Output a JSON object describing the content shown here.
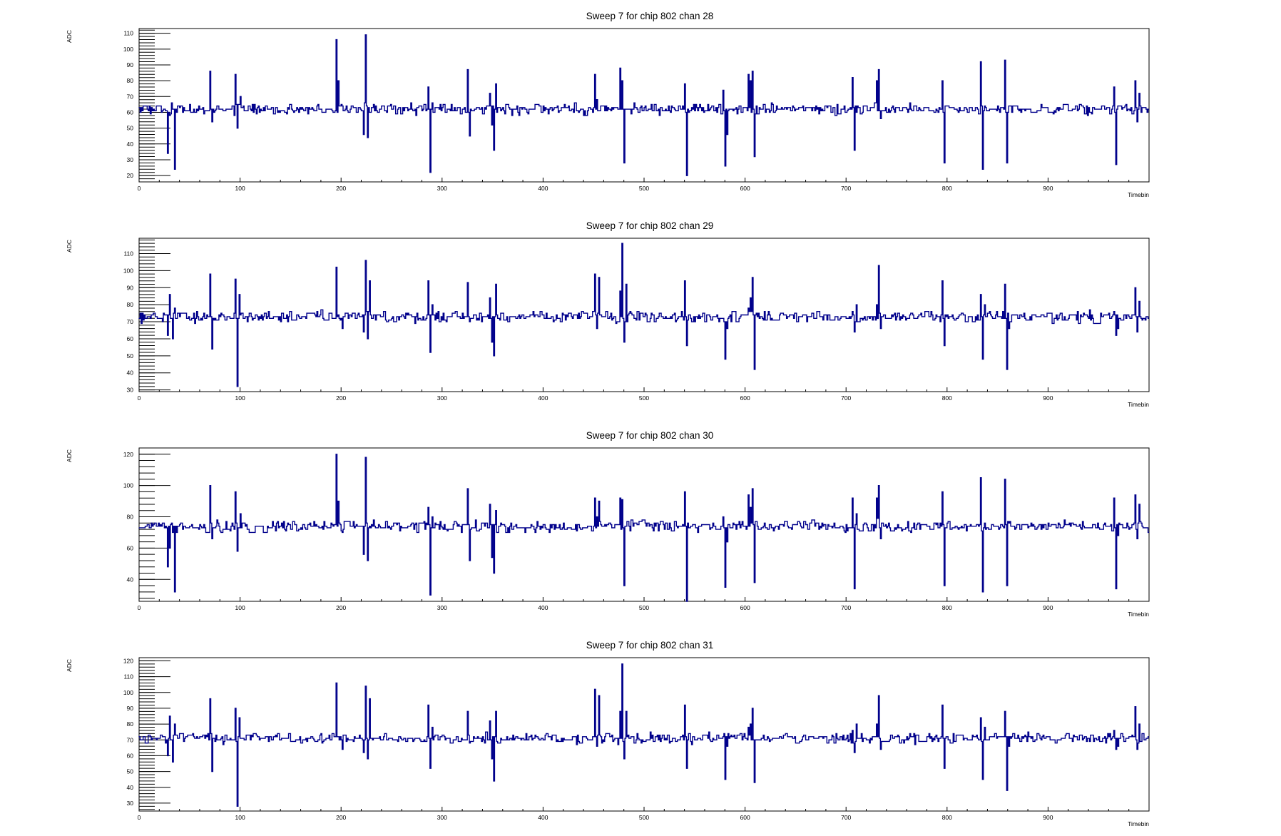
{
  "chart_data": [
    {
      "type": "line",
      "title": "Sweep 7 for chip 802 chan 28",
      "xlabel": "Timebin",
      "ylabel": "ADC",
      "xlim": [
        0,
        1000
      ],
      "ylim": [
        16,
        113
      ],
      "x_ticks": [
        0,
        100,
        200,
        300,
        400,
        500,
        600,
        700,
        800,
        900
      ],
      "y_ticks": [
        20,
        30,
        40,
        50,
        60,
        70,
        80,
        90,
        100,
        110
      ],
      "y_minor_step": 2,
      "grid": false,
      "baseline": 62,
      "noise": 2.2,
      "seed": 28,
      "spikes": [
        [
          28,
          34
        ],
        [
          30,
          58
        ],
        [
          32,
          66
        ],
        [
          35,
          24
        ],
        [
          37,
          60
        ],
        [
          70,
          86
        ],
        [
          72,
          54
        ],
        [
          95,
          84
        ],
        [
          97,
          50
        ],
        [
          100,
          70
        ],
        [
          195,
          106
        ],
        [
          197,
          80
        ],
        [
          201,
          64
        ],
        [
          222,
          46
        ],
        [
          224,
          109
        ],
        [
          226,
          44
        ],
        [
          228,
          60
        ],
        [
          286,
          76
        ],
        [
          288,
          22
        ],
        [
          290,
          66
        ],
        [
          325,
          87
        ],
        [
          327,
          45
        ],
        [
          347,
          72
        ],
        [
          349,
          52
        ],
        [
          351,
          36
        ],
        [
          353,
          78
        ],
        [
          440,
          58
        ],
        [
          451,
          84
        ],
        [
          453,
          68
        ],
        [
          476,
          88
        ],
        [
          478,
          80
        ],
        [
          480,
          28
        ],
        [
          540,
          78
        ],
        [
          542,
          20
        ],
        [
          578,
          74
        ],
        [
          580,
          26
        ],
        [
          582,
          46
        ],
        [
          603,
          84
        ],
        [
          605,
          80
        ],
        [
          607,
          86
        ],
        [
          609,
          32
        ],
        [
          706,
          82
        ],
        [
          708,
          36
        ],
        [
          710,
          60
        ],
        [
          730,
          80
        ],
        [
          732,
          87
        ],
        [
          734,
          56
        ],
        [
          795,
          80
        ],
        [
          797,
          28
        ],
        [
          833,
          92
        ],
        [
          835,
          24
        ],
        [
          837,
          64
        ],
        [
          857,
          93
        ],
        [
          859,
          28
        ],
        [
          965,
          76
        ],
        [
          967,
          27
        ],
        [
          969,
          64
        ],
        [
          986,
          80
        ],
        [
          988,
          54
        ],
        [
          990,
          72
        ]
      ]
    },
    {
      "type": "line",
      "title": "Sweep 7 for chip 802 chan 29",
      "xlabel": "Timebin",
      "ylabel": "ADC",
      "xlim": [
        0,
        1000
      ],
      "ylim": [
        29,
        119
      ],
      "x_ticks": [
        0,
        100,
        200,
        300,
        400,
        500,
        600,
        700,
        800,
        900
      ],
      "y_ticks": [
        30,
        40,
        50,
        60,
        70,
        80,
        90,
        100,
        110
      ],
      "y_minor_step": 2,
      "grid": false,
      "baseline": 73,
      "noise": 2.2,
      "seed": 29,
      "spikes": [
        [
          28,
          62
        ],
        [
          30,
          86
        ],
        [
          33,
          60
        ],
        [
          35,
          78
        ],
        [
          70,
          98
        ],
        [
          72,
          54
        ],
        [
          95,
          95
        ],
        [
          97,
          32
        ],
        [
          99,
          86
        ],
        [
          195,
          102
        ],
        [
          197,
          74
        ],
        [
          201,
          66
        ],
        [
          222,
          64
        ],
        [
          224,
          106
        ],
        [
          226,
          60
        ],
        [
          228,
          94
        ],
        [
          286,
          94
        ],
        [
          288,
          52
        ],
        [
          290,
          80
        ],
        [
          325,
          93
        ],
        [
          327,
          70
        ],
        [
          347,
          84
        ],
        [
          349,
          58
        ],
        [
          351,
          50
        ],
        [
          353,
          92
        ],
        [
          451,
          98
        ],
        [
          453,
          66
        ],
        [
          455,
          96
        ],
        [
          476,
          88
        ],
        [
          478,
          116
        ],
        [
          480,
          58
        ],
        [
          482,
          92
        ],
        [
          540,
          94
        ],
        [
          542,
          56
        ],
        [
          578,
          72
        ],
        [
          580,
          48
        ],
        [
          582,
          66
        ],
        [
          603,
          78
        ],
        [
          605,
          84
        ],
        [
          607,
          96
        ],
        [
          609,
          42
        ],
        [
          706,
          76
        ],
        [
          708,
          64
        ],
        [
          710,
          80
        ],
        [
          730,
          80
        ],
        [
          732,
          103
        ],
        [
          734,
          66
        ],
        [
          795,
          94
        ],
        [
          797,
          56
        ],
        [
          833,
          86
        ],
        [
          835,
          48
        ],
        [
          837,
          80
        ],
        [
          857,
          92
        ],
        [
          859,
          42
        ],
        [
          861,
          66
        ],
        [
          965,
          76
        ],
        [
          967,
          62
        ],
        [
          969,
          66
        ],
        [
          986,
          90
        ],
        [
          988,
          64
        ],
        [
          990,
          82
        ]
      ]
    },
    {
      "type": "line",
      "title": "Sweep 7 for chip 802 chan 30",
      "xlabel": "Timebin",
      "ylabel": "ADC",
      "xlim": [
        0,
        1000
      ],
      "ylim": [
        26,
        124
      ],
      "x_ticks": [
        0,
        100,
        200,
        300,
        400,
        500,
        600,
        700,
        800,
        900
      ],
      "y_ticks": [
        40,
        60,
        80,
        100,
        120
      ],
      "y_minor_step": 4,
      "grid": false,
      "baseline": 74,
      "noise": 2.4,
      "seed": 30,
      "spikes": [
        [
          28,
          48
        ],
        [
          30,
          60
        ],
        [
          32,
          76
        ],
        [
          35,
          32
        ],
        [
          37,
          70
        ],
        [
          70,
          100
        ],
        [
          72,
          66
        ],
        [
          95,
          96
        ],
        [
          97,
          58
        ],
        [
          100,
          82
        ],
        [
          195,
          120
        ],
        [
          197,
          90
        ],
        [
          201,
          70
        ],
        [
          222,
          56
        ],
        [
          224,
          118
        ],
        [
          226,
          52
        ],
        [
          228,
          74
        ],
        [
          286,
          86
        ],
        [
          288,
          30
        ],
        [
          290,
          80
        ],
        [
          325,
          98
        ],
        [
          327,
          52
        ],
        [
          347,
          88
        ],
        [
          349,
          54
        ],
        [
          351,
          44
        ],
        [
          353,
          84
        ],
        [
          451,
          92
        ],
        [
          453,
          80
        ],
        [
          455,
          90
        ],
        [
          476,
          92
        ],
        [
          478,
          91
        ],
        [
          480,
          36
        ],
        [
          540,
          96
        ],
        [
          542,
          26
        ],
        [
          578,
          80
        ],
        [
          580,
          35
        ],
        [
          582,
          64
        ],
        [
          603,
          94
        ],
        [
          605,
          86
        ],
        [
          607,
          98
        ],
        [
          609,
          38
        ],
        [
          706,
          92
        ],
        [
          708,
          34
        ],
        [
          710,
          82
        ],
        [
          730,
          92
        ],
        [
          732,
          100
        ],
        [
          734,
          66
        ],
        [
          795,
          96
        ],
        [
          797,
          36
        ],
        [
          833,
          105
        ],
        [
          835,
          32
        ],
        [
          837,
          76
        ],
        [
          857,
          104
        ],
        [
          859,
          36
        ],
        [
          861,
          76
        ],
        [
          965,
          92
        ],
        [
          967,
          34
        ],
        [
          969,
          68
        ],
        [
          986,
          94
        ],
        [
          988,
          66
        ],
        [
          990,
          88
        ]
      ]
    },
    {
      "type": "line",
      "title": "Sweep 7 for chip 802 chan 31",
      "xlabel": "Timebin",
      "ylabel": "ADC",
      "xlim": [
        0,
        1000
      ],
      "ylim": [
        25,
        122
      ],
      "x_ticks": [
        0,
        100,
        200,
        300,
        400,
        500,
        600,
        700,
        800,
        900
      ],
      "y_ticks": [
        30,
        40,
        50,
        60,
        70,
        80,
        90,
        100,
        110,
        120
      ],
      "y_minor_step": 2,
      "grid": false,
      "baseline": 71,
      "noise": 2.2,
      "seed": 31,
      "spikes": [
        [
          28,
          60
        ],
        [
          30,
          85
        ],
        [
          33,
          56
        ],
        [
          35,
          80
        ],
        [
          70,
          96
        ],
        [
          72,
          50
        ],
        [
          95,
          90
        ],
        [
          97,
          28
        ],
        [
          99,
          84
        ],
        [
          195,
          106
        ],
        [
          197,
          72
        ],
        [
          201,
          64
        ],
        [
          222,
          62
        ],
        [
          224,
          104
        ],
        [
          226,
          58
        ],
        [
          228,
          96
        ],
        [
          286,
          92
        ],
        [
          288,
          52
        ],
        [
          290,
          78
        ],
        [
          325,
          88
        ],
        [
          327,
          68
        ],
        [
          347,
          82
        ],
        [
          349,
          58
        ],
        [
          351,
          44
        ],
        [
          353,
          88
        ],
        [
          451,
          102
        ],
        [
          453,
          66
        ],
        [
          455,
          98
        ],
        [
          476,
          88
        ],
        [
          478,
          118
        ],
        [
          480,
          58
        ],
        [
          482,
          88
        ],
        [
          540,
          92
        ],
        [
          542,
          52
        ],
        [
          578,
          72
        ],
        [
          580,
          45
        ],
        [
          582,
          66
        ],
        [
          603,
          78
        ],
        [
          605,
          80
        ],
        [
          607,
          90
        ],
        [
          609,
          43
        ],
        [
          706,
          76
        ],
        [
          708,
          62
        ],
        [
          710,
          80
        ],
        [
          730,
          80
        ],
        [
          732,
          98
        ],
        [
          734,
          64
        ],
        [
          795,
          92
        ],
        [
          797,
          52
        ],
        [
          833,
          84
        ],
        [
          835,
          45
        ],
        [
          837,
          78
        ],
        [
          857,
          88
        ],
        [
          859,
          38
        ],
        [
          861,
          66
        ],
        [
          965,
          76
        ],
        [
          967,
          64
        ],
        [
          969,
          66
        ],
        [
          986,
          91
        ],
        [
          988,
          64
        ],
        [
          990,
          80
        ]
      ]
    }
  ]
}
